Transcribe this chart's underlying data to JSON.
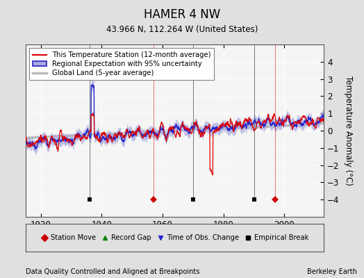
{
  "title": "HAMER 4 NW",
  "subtitle": "43.966 N, 112.264 W (United States)",
  "xlabel_bottom": "Data Quality Controlled and Aligned at Breakpoints",
  "xlabel_right": "Berkeley Earth",
  "ylabel": "Temperature Anomaly (°C)",
  "ylim": [
    -5,
    5
  ],
  "xlim": [
    1915,
    2013
  ],
  "yticks": [
    -4,
    -3,
    -2,
    -1,
    0,
    1,
    2,
    3,
    4
  ],
  "xticks": [
    1920,
    1940,
    1960,
    1980,
    2000
  ],
  "background_color": "#e0e0e0",
  "plot_bg_color": "#f5f5f5",
  "station_color": "#dd0000",
  "regional_color": "#2222cc",
  "regional_fill_color": "#aaaadd",
  "global_color": "#bbbbbb",
  "station_move_years": [
    1957,
    1997
  ],
  "empirical_break_years": [
    1936,
    1970,
    1990
  ],
  "marker_y": -4.0,
  "legend_line1": "This Temperature Station (12-month average)",
  "legend_line2": "Regional Expectation with 95% uncertainty",
  "legend_line3": "Global Land (5-year average)"
}
